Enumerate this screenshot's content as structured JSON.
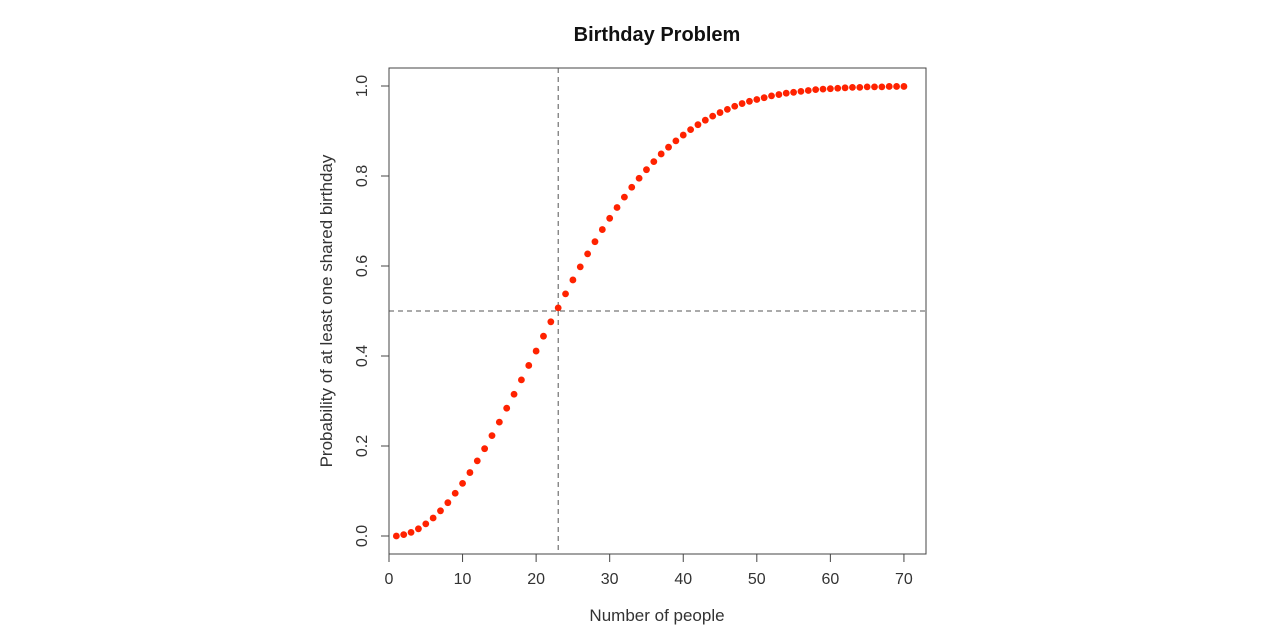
{
  "chart_data": {
    "type": "scatter",
    "title": "Birthday Problem",
    "xlabel": "Number of people",
    "ylabel": "Probability of at least one shared birthday",
    "xlim": [
      0,
      73
    ],
    "ylim": [
      -0.04,
      1.04
    ],
    "x_ticks": [
      0,
      10,
      20,
      30,
      40,
      50,
      60,
      70
    ],
    "y_ticks": [
      0.0,
      0.2,
      0.4,
      0.6,
      0.8,
      1.0
    ],
    "x_tick_labels": [
      "0",
      "10",
      "20",
      "30",
      "40",
      "50",
      "60",
      "70"
    ],
    "y_tick_labels": [
      "0.0",
      "0.2",
      "0.4",
      "0.6",
      "0.8",
      "1.0"
    ],
    "point_color": "#ff2200",
    "reference_lines": {
      "vertical_x": 23,
      "horizontal_y": 0.5
    },
    "grid": false,
    "series": [
      {
        "x": [
          1,
          2,
          3,
          4,
          5,
          6,
          7,
          8,
          9,
          10,
          11,
          12,
          13,
          14,
          15,
          16,
          17,
          18,
          19,
          20,
          21,
          22,
          23,
          24,
          25,
          26,
          27,
          28,
          29,
          30,
          31,
          32,
          33,
          34,
          35,
          36,
          37,
          38,
          39,
          40,
          41,
          42,
          43,
          44,
          45,
          46,
          47,
          48,
          49,
          50,
          51,
          52,
          53,
          54,
          55,
          56,
          57,
          58,
          59,
          60,
          61,
          62,
          63,
          64,
          65,
          66,
          67,
          68,
          69,
          70
        ],
        "values": [
          0.0,
          0.003,
          0.008,
          0.016,
          0.027,
          0.04,
          0.056,
          0.074,
          0.095,
          0.117,
          0.141,
          0.167,
          0.194,
          0.223,
          0.253,
          0.284,
          0.315,
          0.347,
          0.379,
          0.411,
          0.444,
          0.476,
          0.507,
          0.538,
          0.569,
          0.598,
          0.627,
          0.654,
          0.681,
          0.706,
          0.73,
          0.753,
          0.775,
          0.795,
          0.814,
          0.832,
          0.849,
          0.864,
          0.878,
          0.891,
          0.903,
          0.914,
          0.924,
          0.933,
          0.941,
          0.948,
          0.955,
          0.961,
          0.966,
          0.97,
          0.974,
          0.978,
          0.981,
          0.984,
          0.986,
          0.988,
          0.99,
          0.992,
          0.993,
          0.994,
          0.995,
          0.996,
          0.997,
          0.997,
          0.998,
          0.998,
          0.998,
          0.999,
          0.999,
          0.999
        ]
      }
    ]
  }
}
